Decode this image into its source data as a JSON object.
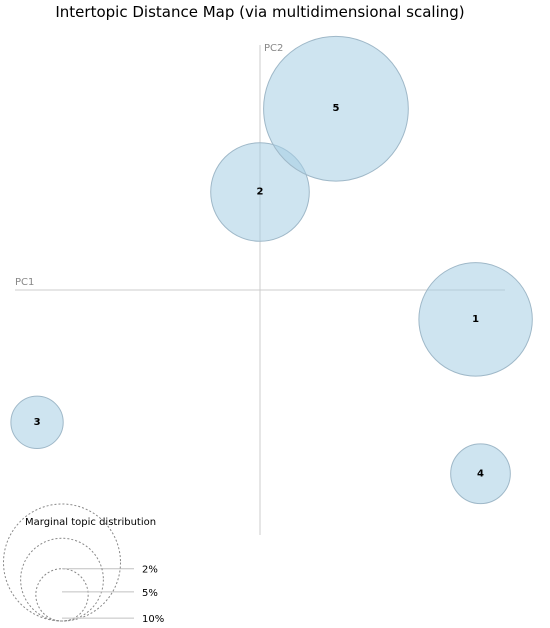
{
  "chart_data": {
    "type": "scatter",
    "title": "Intertopic Distance Map (via multidimensional scaling)",
    "xlabel": "PC1",
    "ylabel": "PC2",
    "xlim": [
      -1,
      1
    ],
    "ylim": [
      -1,
      1
    ],
    "grid": false,
    "topics": [
      {
        "label": "1",
        "x": 0.88,
        "y": -0.12,
        "marginal_pct": 9.4
      },
      {
        "label": "2",
        "x": 0.0,
        "y": 0.4,
        "marginal_pct": 7.1
      },
      {
        "label": "3",
        "x": -0.91,
        "y": -0.54,
        "marginal_pct": 2.0
      },
      {
        "label": "4",
        "x": 0.9,
        "y": -0.75,
        "marginal_pct": 2.6
      },
      {
        "label": "5",
        "x": 0.31,
        "y": 0.74,
        "marginal_pct": 15.3
      }
    ],
    "legend": {
      "title": "Marginal topic distribution",
      "entries": [
        {
          "label": "2%",
          "pct": 2
        },
        {
          "label": "5%",
          "pct": 5
        },
        {
          "label": "10%",
          "pct": 10
        }
      ]
    }
  }
}
